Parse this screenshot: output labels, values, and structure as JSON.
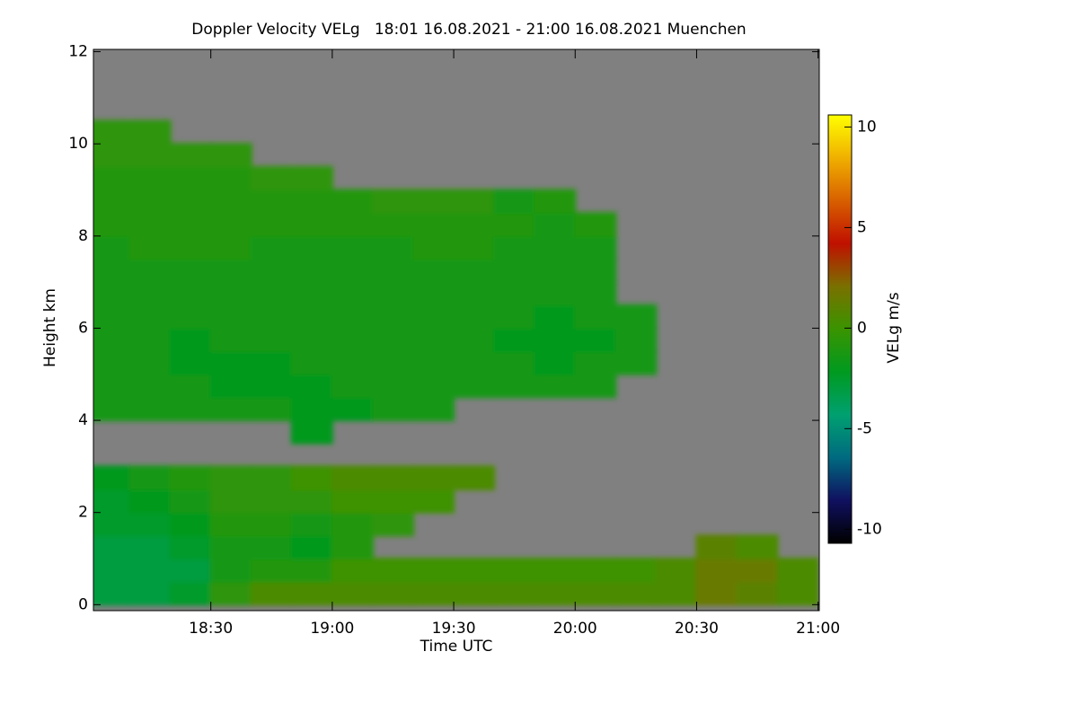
{
  "chart_data": {
    "type": "heatmap",
    "title": "Doppler Velocity VELg   18:01 16.08.2021 - 21:00 16.08.2021 Muenchen",
    "x_label": "Time UTC",
    "y_label": "Height km",
    "colorbar_label": "VELg m/s",
    "xlim": [
      18.0167,
      21.005
    ],
    "xticks": [
      {
        "value": 18.5,
        "label": "18:30"
      },
      {
        "value": 19,
        "label": "19:00"
      },
      {
        "value": 19.5,
        "label": "19:30"
      },
      {
        "value": 20,
        "label": "20:00"
      },
      {
        "value": 20.5,
        "label": "20:30"
      },
      {
        "value": 21,
        "label": "21:00"
      }
    ],
    "ylim": [
      -0.13,
      12.05
    ],
    "yticks": [
      0,
      2,
      4,
      6,
      8,
      10,
      12
    ],
    "clim": [
      -10.7,
      10.6
    ],
    "cticks": [
      -10,
      -5,
      0,
      5,
      10
    ],
    "colormap": [
      "#000000",
      "#101060",
      "#006a80",
      "#00a070",
      "#009a20",
      "#3a9400",
      "#7a7000",
      "#c01000",
      "#d86000",
      "#f0b000",
      "#ffff00"
    ],
    "background": "#808080",
    "x_bins": [
      18,
      18.1667,
      18.3333,
      18.5,
      18.6667,
      18.8333,
      19,
      19.1667,
      19.3333,
      19.5,
      19.6667,
      19.8333,
      20,
      20.1667,
      20.3333,
      20.5,
      20.6667,
      20.8333,
      21
    ],
    "y_bins": [
      0,
      0.5,
      1,
      1.5,
      2,
      2.5,
      3,
      3.5,
      4,
      4.5,
      5,
      5.5,
      6,
      6.5,
      7,
      7.5,
      8,
      8.5,
      9,
      9.5,
      10,
      10.5,
      11,
      11.5,
      12
    ],
    "values": [
      [
        -3,
        -3,
        -3,
        -2.5,
        -2.5,
        -2,
        null,
        null,
        -1.5,
        -1.5,
        -1.5,
        -1.5,
        -1.5,
        -1.5,
        -1.5,
        -1.5,
        -1,
        -1,
        -1,
        -0.5,
        -0.5,
        null,
        null,
        null
      ],
      [
        -3,
        -3,
        -3,
        -2.5,
        -2,
        -1.5,
        null,
        null,
        -1.5,
        -1.5,
        -1.5,
        -1.5,
        -1.5,
        -1.5,
        -1.5,
        -1,
        -1,
        -1,
        -1,
        -0.5,
        -0.5,
        null,
        null,
        null
      ],
      [
        -2.5,
        -3,
        -2.5,
        -2,
        -1.5,
        -1,
        null,
        null,
        -1.5,
        -1.5,
        -2,
        -2,
        -1.5,
        -1.5,
        -1.5,
        -1,
        -1,
        -1,
        -1,
        -0.5,
        null,
        null,
        null,
        null
      ],
      [
        -0.5,
        -1.5,
        -1.5,
        -1,
        -0.5,
        -0.5,
        null,
        null,
        -1.5,
        -2,
        -2,
        -1.5,
        -1.5,
        -1.5,
        -1.5,
        -1,
        -1,
        -1,
        -1,
        -0.5,
        null,
        null,
        null,
        null
      ],
      [
        0.5,
        -1,
        -1.5,
        -1,
        -0.5,
        -0.5,
        null,
        null,
        -1.5,
        -2,
        -2,
        -1.5,
        -1.5,
        -1.5,
        -1.5,
        -1.5,
        -1,
        -1,
        -0.5,
        null,
        null,
        null,
        null,
        null
      ],
      [
        0.5,
        -1,
        -2,
        -1.5,
        -0.5,
        0,
        null,
        -2,
        -2,
        -2,
        -1.5,
        -1.5,
        -1.5,
        -1.5,
        -1.5,
        -1.5,
        -1,
        -1,
        -0.5,
        null,
        null,
        null,
        null,
        null
      ],
      [
        0.5,
        0,
        -1,
        -1,
        0,
        0.5,
        null,
        null,
        -2,
        -1.5,
        -1.5,
        -1.5,
        -1.5,
        -1.5,
        -1.5,
        -1.5,
        -1,
        -1,
        null,
        null,
        null,
        null,
        null,
        null
      ],
      [
        0.5,
        0,
        null,
        -0.5,
        0,
        0.5,
        null,
        null,
        -1.5,
        -1.5,
        -1.5,
        -1.5,
        -1.5,
        -1.5,
        -1.5,
        -1.5,
        -1,
        -0.5,
        null,
        null,
        null,
        null,
        null,
        null
      ],
      [
        0.5,
        0,
        null,
        null,
        0,
        0.5,
        null,
        null,
        -1.5,
        -1.5,
        -1.5,
        -1.5,
        -1.5,
        -1.5,
        -1.5,
        -1,
        -1,
        -0.5,
        null,
        null,
        null,
        null,
        null,
        null
      ],
      [
        0.5,
        0,
        null,
        null,
        null,
        0.5,
        null,
        null,
        null,
        -1.5,
        -1.5,
        -1.5,
        -1.5,
        -1.5,
        -1.5,
        -1,
        -1,
        -0.5,
        null,
        null,
        null,
        null,
        null,
        null
      ],
      [
        0.5,
        0,
        null,
        null,
        null,
        null,
        null,
        null,
        null,
        -1.5,
        -1.5,
        -2,
        -1.5,
        -1.5,
        -1.5,
        -1.5,
        -1,
        -1.5,
        null,
        null,
        null,
        null,
        null,
        null
      ],
      [
        0.5,
        0,
        null,
        null,
        null,
        null,
        null,
        null,
        null,
        -1.5,
        -2,
        -2,
        -2,
        -1.5,
        -1.5,
        -1.5,
        -1.5,
        -1,
        null,
        null,
        null,
        null,
        null,
        null
      ],
      [
        0.5,
        0,
        null,
        null,
        null,
        null,
        null,
        null,
        null,
        -1.5,
        -1.5,
        -2,
        -1.5,
        -1.5,
        -1.5,
        -1.5,
        -1,
        null,
        null,
        null,
        null,
        null,
        null,
        null
      ],
      [
        0.5,
        0,
        null,
        null,
        null,
        null,
        null,
        null,
        null,
        null,
        -1.5,
        -1.5,
        -1.5,
        null,
        null,
        null,
        null,
        null,
        null,
        null,
        null,
        null,
        null,
        null
      ],
      [
        0.5,
        0.5,
        null,
        null,
        null,
        null,
        null,
        null,
        null,
        null,
        null,
        null,
        null,
        null,
        null,
        null,
        null,
        null,
        null,
        null,
        null,
        null,
        null,
        null
      ],
      [
        1.5,
        1.5,
        1,
        null,
        null,
        null,
        null,
        null,
        null,
        null,
        null,
        null,
        null,
        null,
        null,
        null,
        null,
        null,
        null,
        null,
        null,
        null,
        null,
        null
      ],
      [
        1,
        1.5,
        0.5,
        null,
        null,
        null,
        null,
        null,
        null,
        null,
        null,
        null,
        null,
        null,
        null,
        null,
        null,
        null,
        null,
        null,
        null,
        null,
        null,
        null
      ],
      [
        0.5,
        0.5,
        null,
        null,
        null,
        null,
        null,
        null,
        null,
        null,
        null,
        null,
        null,
        null,
        null,
        null,
        null,
        null,
        null,
        null,
        null,
        null,
        null,
        null
      ]
    ]
  }
}
